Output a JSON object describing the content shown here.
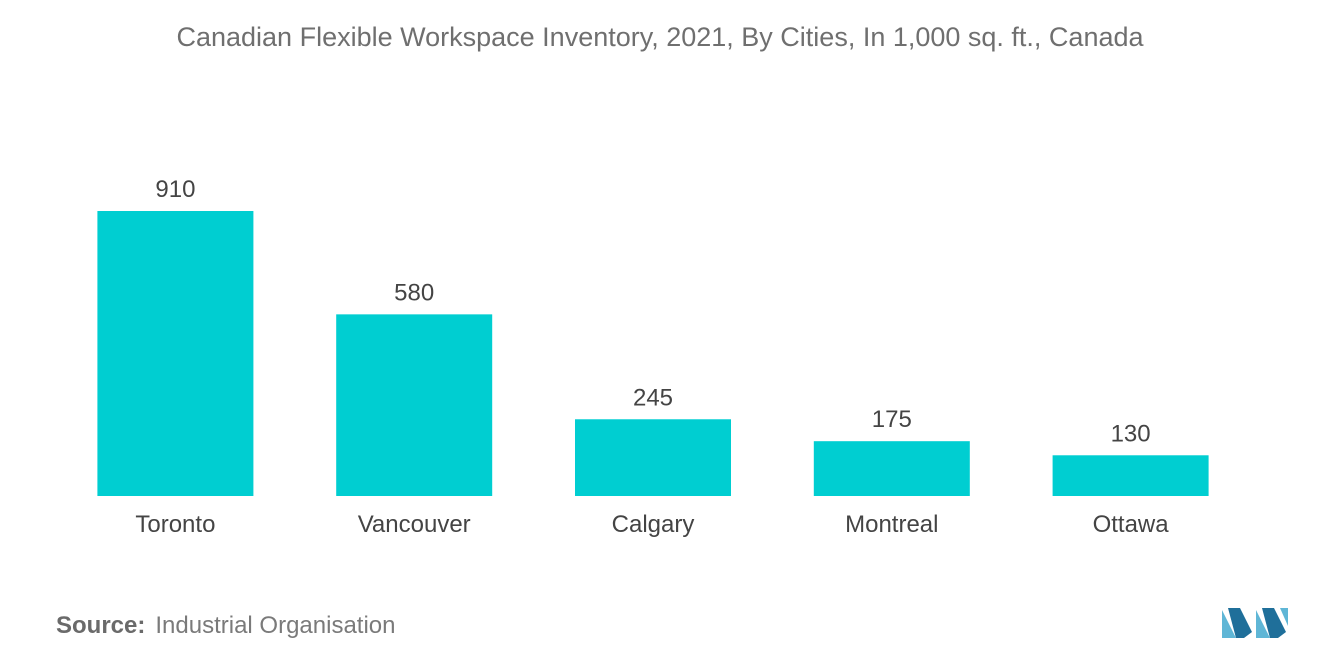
{
  "chart_data": {
    "type": "bar",
    "title": "Canadian Flexible Workspace Inventory, 2021, By Cities, In 1,000 sq. ft., Canada",
    "categories": [
      "Toronto",
      "Vancouver",
      "Calgary",
      "Montreal",
      "Ottawa"
    ],
    "values": [
      910,
      580,
      245,
      175,
      130
    ],
    "xlabel": "",
    "ylabel": "",
    "ylim": [
      0,
      910
    ],
    "grid": false,
    "legend": "none",
    "bar_color": "#00ced1"
  },
  "source": {
    "label": "Source:",
    "text": "Industrial Organisation"
  },
  "logo": {
    "icon": "mordor-intelligence-logo-icon",
    "colors": [
      "#5fb6d6",
      "#1f6f9a"
    ]
  }
}
